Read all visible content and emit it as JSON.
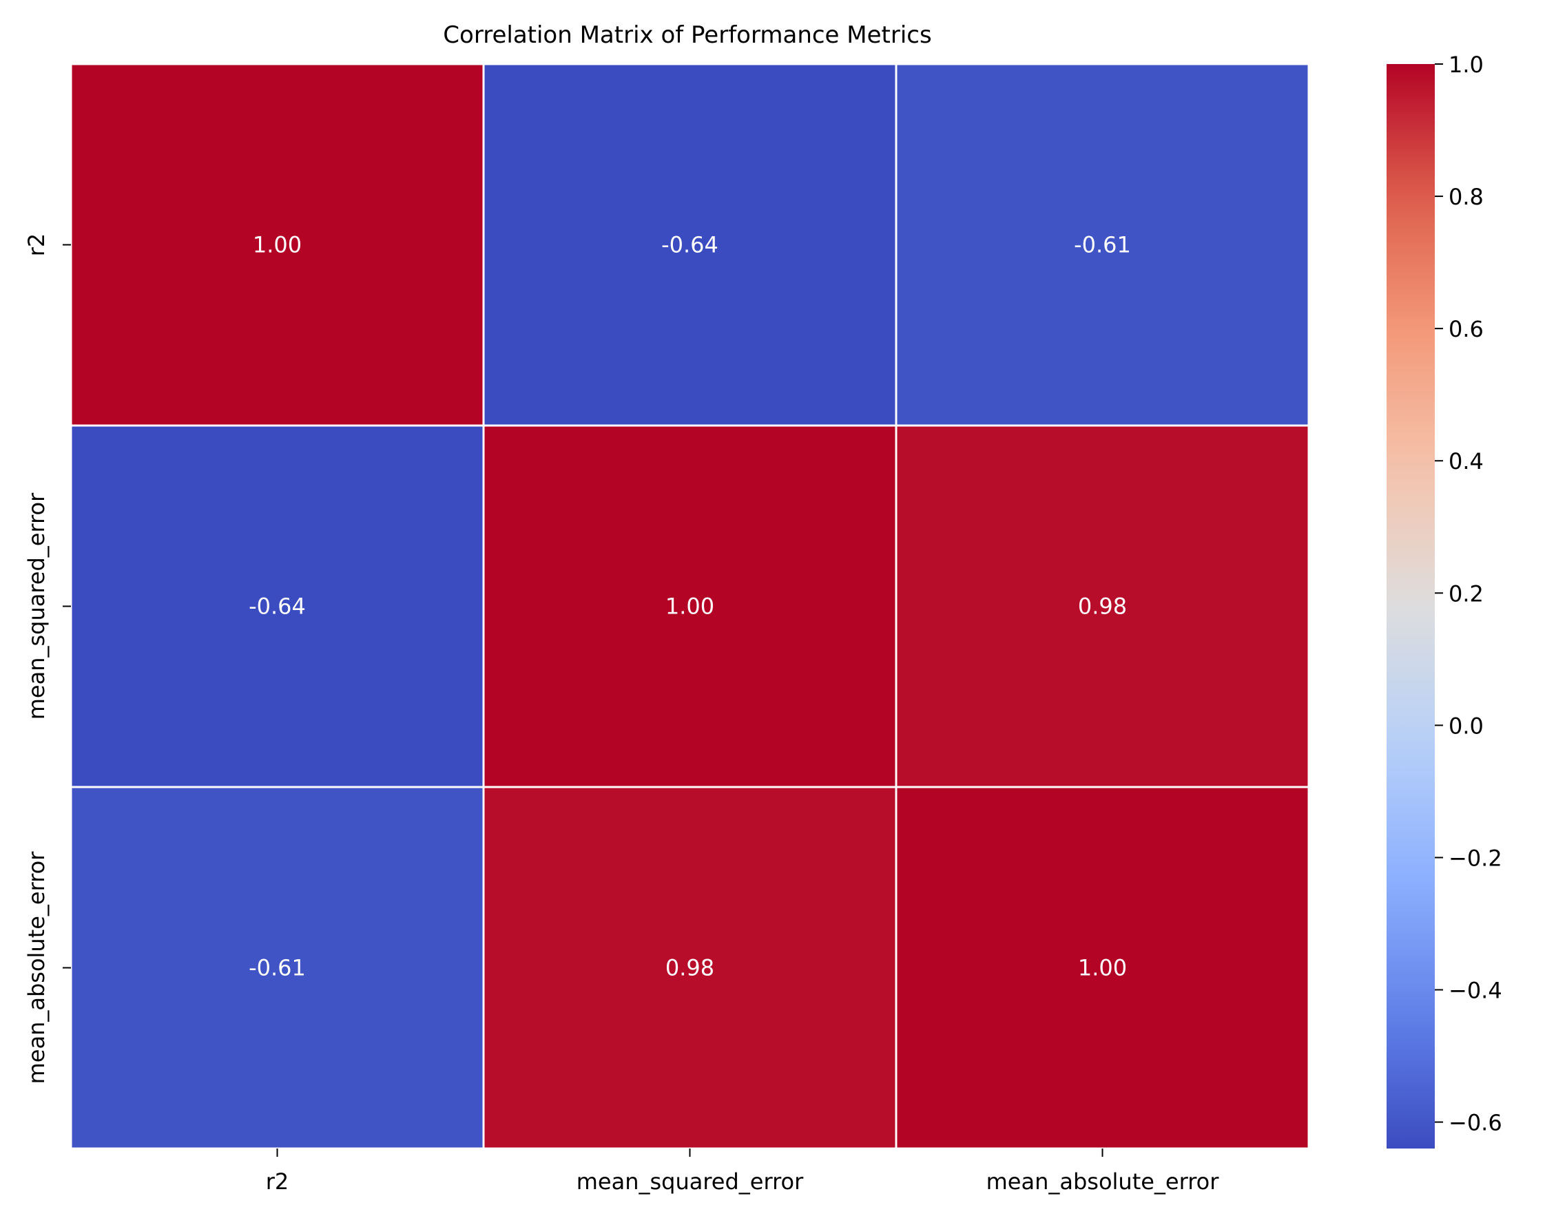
{
  "chart_data": {
    "type": "heatmap",
    "title": "Correlation Matrix of Performance Metrics",
    "x_categories": [
      "r2",
      "mean_squared_error",
      "mean_absolute_error"
    ],
    "y_categories": [
      "r2",
      "mean_squared_error",
      "mean_absolute_error"
    ],
    "values": [
      [
        1.0,
        -0.64,
        -0.61
      ],
      [
        -0.64,
        1.0,
        0.98
      ],
      [
        -0.61,
        0.98,
        1.0
      ]
    ],
    "cell_labels": [
      [
        "1.00",
        "-0.64",
        "-0.61"
      ],
      [
        "-0.64",
        "1.00",
        "0.98"
      ],
      [
        "-0.61",
        "0.98",
        "1.00"
      ]
    ],
    "colormap": "coolwarm",
    "colorbar": {
      "vmin": -0.64,
      "vmax": 1.0,
      "ticks": [
        -0.6,
        -0.4,
        -0.2,
        0.0,
        0.2,
        0.4,
        0.6,
        0.8,
        1.0
      ],
      "tick_labels": [
        "−0.6",
        "−0.4",
        "−0.2",
        "0.0",
        "0.2",
        "0.4",
        "0.6",
        "0.8",
        "1.0"
      ]
    },
    "cell_border_color": "#ffffff",
    "annotation_color": "#ffffff"
  }
}
